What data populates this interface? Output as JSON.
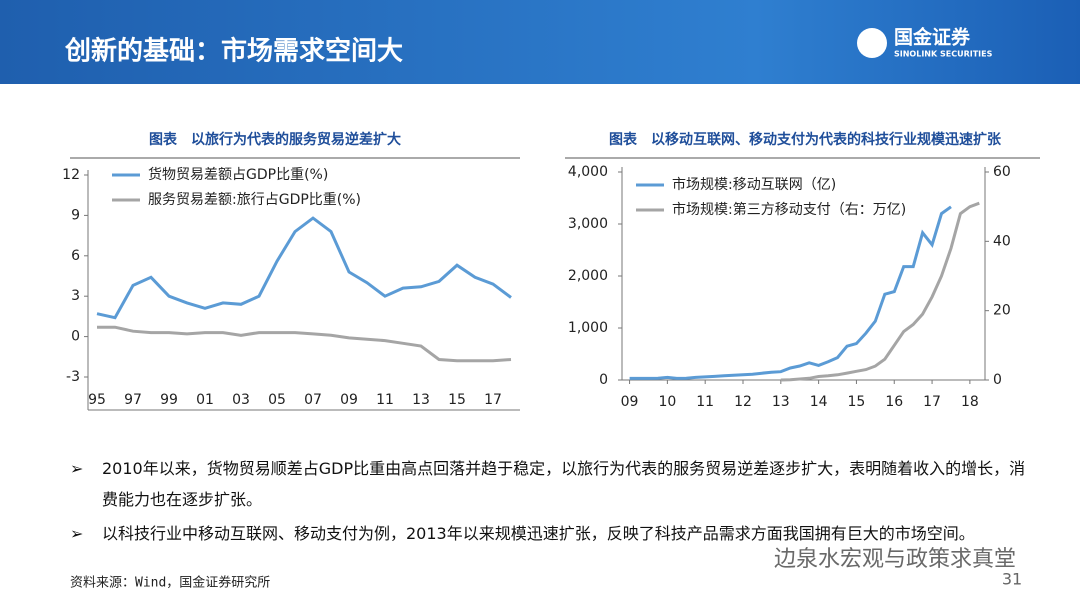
{
  "header": {
    "title": "创新的基础：市场需求空间大",
    "logo_name": "国金证券",
    "logo_en": "SINOLINK SECURITIES"
  },
  "chart_data": [
    {
      "type": "line",
      "title": "图表　以旅行为代表的服务贸易逆差扩大",
      "categories": [
        "95",
        null,
        "97",
        null,
        "99",
        null,
        "01",
        null,
        "03",
        null,
        "05",
        null,
        "07",
        null,
        "09",
        null,
        "11",
        null,
        "13",
        null,
        "15",
        null,
        "17",
        null
      ],
      "series": [
        {
          "name": "货物贸易差额占GDP比重(%)",
          "color": "#5b9bd5",
          "values": [
            1.7,
            1.4,
            3.8,
            4.4,
            3.0,
            2.5,
            2.1,
            2.5,
            2.4,
            3.0,
            5.6,
            7.8,
            8.8,
            7.8,
            4.8,
            4.0,
            3.0,
            3.6,
            3.7,
            4.1,
            5.3,
            4.4,
            3.9,
            2.9
          ]
        },
        {
          "name": "服务贸易差额:旅行占GDP比重(%)",
          "color": "#a5a5a5",
          "values": [
            0.7,
            0.7,
            0.4,
            0.3,
            0.3,
            0.2,
            0.3,
            0.3,
            0.1,
            0.3,
            0.3,
            0.3,
            0.2,
            0.1,
            -0.1,
            -0.2,
            -0.3,
            -0.5,
            -0.7,
            -1.7,
            -1.8,
            -1.8,
            -1.8,
            -1.7
          ]
        }
      ],
      "ylim": [
        -3,
        12
      ],
      "yticks": [
        -3,
        0,
        3,
        6,
        9,
        12
      ],
      "grid": false
    },
    {
      "type": "line",
      "title": "图表　以移动互联网、移动支付为代表的科技行业规模迅速扩张",
      "x": [
        9,
        9.25,
        9.5,
        9.75,
        10,
        10.25,
        10.5,
        10.75,
        11,
        11.25,
        11.5,
        11.75,
        12,
        12.25,
        12.5,
        12.75,
        13,
        13.25,
        13.5,
        13.75,
        14,
        14.25,
        14.5,
        14.75,
        15,
        15.25,
        15.5,
        15.75,
        16,
        16.25,
        16.5,
        16.75,
        17,
        17.25,
        17.5,
        17.75,
        18,
        18.25
      ],
      "series": [
        {
          "name": "市场规模:移动互联网（亿)",
          "color": "#5b9bd5",
          "values": [
            30,
            30,
            30,
            35,
            50,
            30,
            35,
            50,
            60,
            70,
            80,
            90,
            100,
            110,
            130,
            150,
            160,
            230,
            270,
            330,
            280,
            350,
            430,
            650,
            700,
            900,
            1130,
            1650,
            1700,
            2180,
            2180,
            2830,
            2600,
            3200,
            3330,
            null,
            null,
            null
          ]
        },
        {
          "name": "市场规模:第三方移动支付（右：万亿)",
          "color": "#a5a5a5",
          "axis": "y2",
          "values": [
            null,
            null,
            null,
            null,
            null,
            null,
            null,
            null,
            null,
            null,
            null,
            null,
            null,
            null,
            null,
            null,
            0,
            0.1,
            0.3,
            0.5,
            1,
            1.2,
            1.5,
            2,
            2.5,
            3,
            4,
            6,
            10,
            14,
            16,
            19,
            24,
            30,
            38,
            48,
            50,
            51
          ]
        }
      ],
      "xlim": [
        8.8,
        18.4
      ],
      "xticks": [
        {
          "value": 9,
          "label": "09"
        },
        10,
        11,
        12,
        13,
        14,
        15,
        16,
        17,
        18
      ],
      "ylim": [
        0,
        4000
      ],
      "yticks": [
        0,
        {
          "value": 1000,
          "label": "1,000"
        },
        {
          "value": 2000,
          "label": "2,000"
        },
        {
          "value": 3000,
          "label": "3,000"
        },
        {
          "value": 4000,
          "label": "4,000"
        }
      ],
      "y2lim": [
        0,
        60
      ],
      "y2ticks": [
        0,
        20,
        40,
        60
      ],
      "grid": false
    }
  ],
  "bullets": [
    "2010年以来，货物贸易顺差占GDP比重由高点回落并趋于稳定，以旅行为代表的服务贸易逆差逐步扩大，表明随着收入的增长，消费能力也在逐步扩张。",
    "以科技行业中移动互联网、移动支付为例，2013年以来规模迅速扩张，反映了科技产品需求方面我国拥有巨大的市场空间。"
  ],
  "source": "资料来源：Wind，国金证券研究所",
  "page_number": "31",
  "watermark": "边泉水宏观与政策求真堂"
}
